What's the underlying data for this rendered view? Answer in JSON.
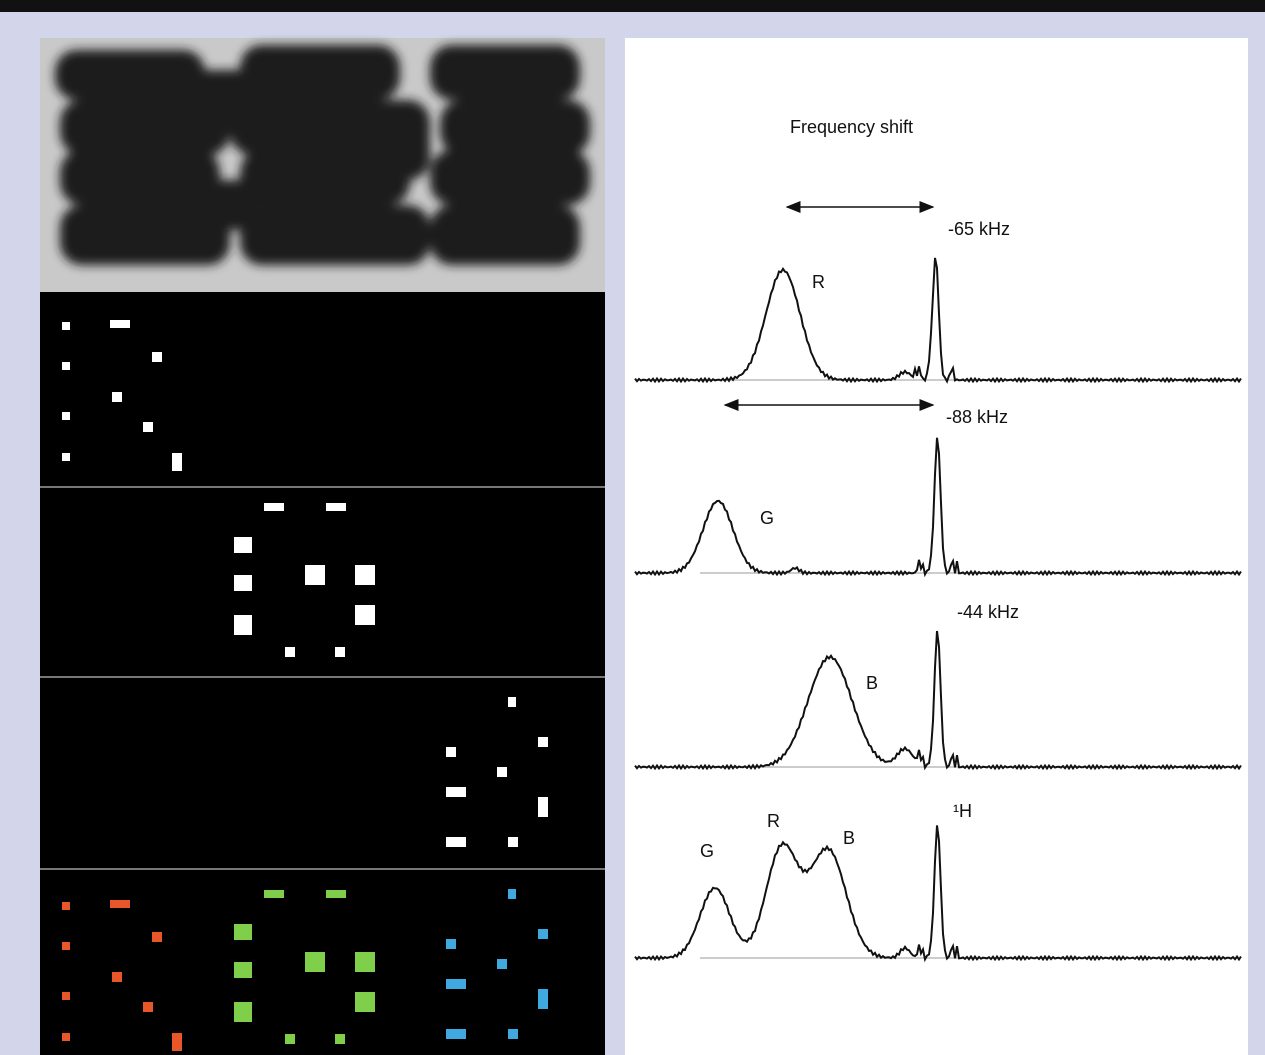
{
  "title": "Frequency shift",
  "spectra": [
    {
      "shift": "-65 kHz",
      "peak": "R"
    },
    {
      "shift": "-88 kHz",
      "peak": "G"
    },
    {
      "shift": "-44 kHz",
      "peak": "B"
    },
    {
      "nucleus": "¹H",
      "peaks": [
        "G",
        "R",
        "B"
      ]
    }
  ]
}
